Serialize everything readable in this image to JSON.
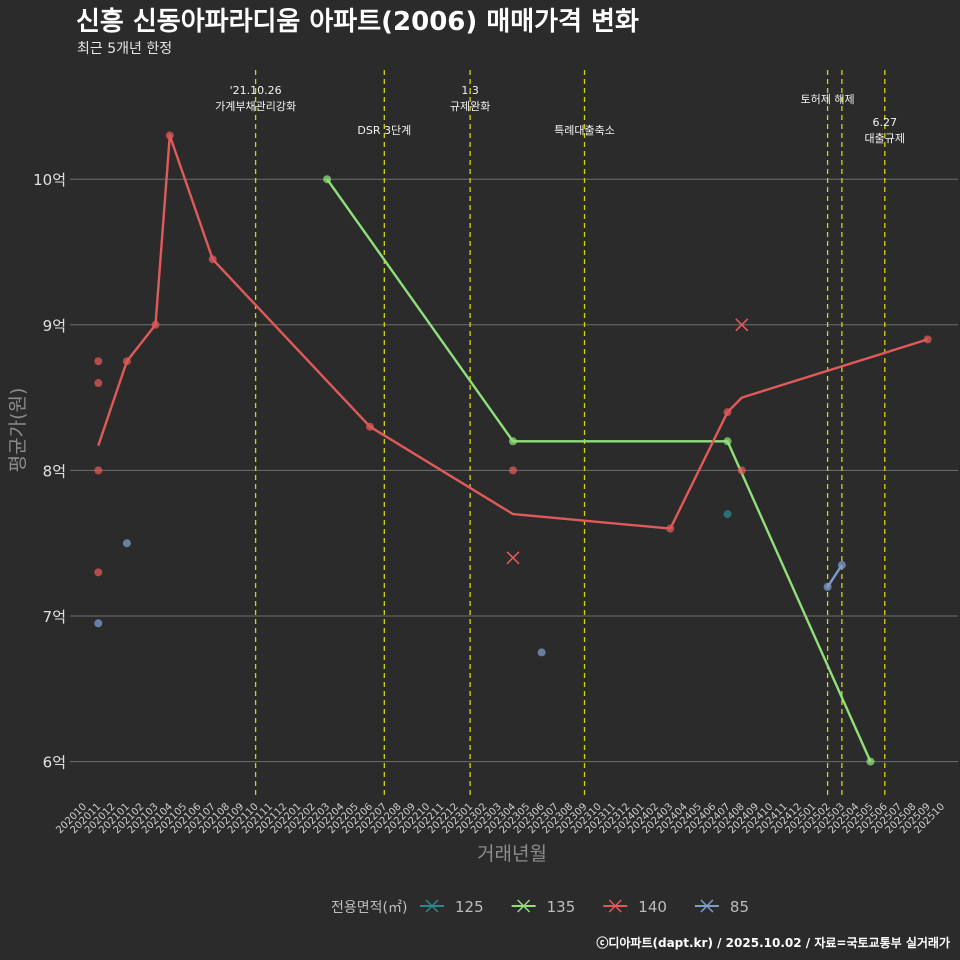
{
  "chart_data": {
    "type": "line",
    "title": "신흥 신동아파라디움 아파트(2006) 매매가격 변화",
    "subtitle": "최근 5개년 한정",
    "xlabel": "거래년월",
    "ylabel": "평균가(원)",
    "ylim": [
      5.75,
      10.75
    ],
    "yticks": [
      {
        "value": 6,
        "label": "6억"
      },
      {
        "value": 7,
        "label": "7억"
      },
      {
        "value": 8,
        "label": "8억"
      },
      {
        "value": 9,
        "label": "9억"
      },
      {
        "value": 10,
        "label": "10억"
      }
    ],
    "x_months": [
      "202010",
      "202011",
      "202012",
      "202101",
      "202102",
      "202103",
      "202104",
      "202105",
      "202106",
      "202107",
      "202108",
      "202109",
      "202110",
      "202111",
      "202112",
      "202201",
      "202202",
      "202203",
      "202204",
      "202205",
      "202206",
      "202207",
      "202208",
      "202209",
      "202210",
      "202211",
      "202212",
      "202301",
      "202302",
      "202303",
      "202304",
      "202305",
      "202306",
      "202307",
      "202308",
      "202309",
      "202310",
      "202311",
      "202312",
      "202401",
      "202402",
      "202403",
      "202404",
      "202405",
      "202406",
      "202407",
      "202408",
      "202409",
      "202410",
      "202411",
      "202412",
      "202501",
      "202502",
      "202503",
      "202504",
      "202505",
      "202506",
      "202507",
      "202508",
      "202509",
      "202510"
    ],
    "events": [
      {
        "month": "202110",
        "lines": [
          "'21.10.26",
          "가계부채관리강화"
        ]
      },
      {
        "month": "202207",
        "lines": [
          "DSR 3단계"
        ]
      },
      {
        "month": "202301",
        "lines": [
          "1.3",
          "규제완화"
        ]
      },
      {
        "month": "202309",
        "lines": [
          "특례대출축소"
        ]
      },
      {
        "month": "202502",
        "lines": [
          "토허제 해제"
        ]
      },
      {
        "month": "202503",
        "lines": []
      },
      {
        "month": "202506",
        "lines": [
          "6.27",
          "대출규제"
        ]
      }
    ],
    "legend": {
      "title": "전용면적(㎡)",
      "position": "bottom"
    },
    "grid": true,
    "series": [
      {
        "name": "125",
        "color": "#2a8a8a",
        "points": [
          {
            "x": "202407",
            "y": 7.7
          }
        ],
        "line": []
      },
      {
        "name": "135",
        "color": "#8fe07a",
        "points": [
          {
            "x": "202203",
            "y": 10.0
          },
          {
            "x": "202304",
            "y": 8.2
          },
          {
            "x": "202407",
            "y": 8.2
          },
          {
            "x": "202505",
            "y": 6.0
          }
        ],
        "line": [
          {
            "x": "202203",
            "y": 10.0
          },
          {
            "x": "202304",
            "y": 8.2
          },
          {
            "x": "202407",
            "y": 8.2
          },
          {
            "x": "202505",
            "y": 6.0
          }
        ]
      },
      {
        "name": "140",
        "color": "#e05a5a",
        "points": [
          {
            "x": "202011",
            "y": 8.75
          },
          {
            "x": "202011",
            "y": 8.6
          },
          {
            "x": "202011",
            "y": 8.0
          },
          {
            "x": "202011",
            "y": 7.3
          },
          {
            "x": "202101",
            "y": 8.75
          },
          {
            "x": "202103",
            "y": 9.0
          },
          {
            "x": "202104",
            "y": 10.3
          },
          {
            "x": "202107",
            "y": 9.45
          },
          {
            "x": "202206",
            "y": 8.3
          },
          {
            "x": "202304",
            "y": 8.0
          },
          {
            "x": "202403",
            "y": 7.6
          },
          {
            "x": "202407",
            "y": 8.4
          },
          {
            "x": "202408",
            "y": 8.0
          },
          {
            "x": "202509",
            "y": 8.9
          }
        ],
        "crosses": [
          {
            "x": "202304",
            "y": 7.4
          },
          {
            "x": "202408",
            "y": 9.0
          }
        ],
        "line": [
          {
            "x": "202011",
            "y": 8.17
          },
          {
            "x": "202101",
            "y": 8.75
          },
          {
            "x": "202103",
            "y": 9.0
          },
          {
            "x": "202104",
            "y": 10.3
          },
          {
            "x": "202107",
            "y": 9.45
          },
          {
            "x": "202206",
            "y": 8.3
          },
          {
            "x": "202304",
            "y": 7.7
          },
          {
            "x": "202403",
            "y": 7.6
          },
          {
            "x": "202407",
            "y": 8.4
          },
          {
            "x": "202408",
            "y": 8.5
          },
          {
            "x": "202509",
            "y": 8.9
          }
        ]
      },
      {
        "name": "85",
        "color": "#7d9ccc",
        "points": [
          {
            "x": "202011",
            "y": 6.95
          },
          {
            "x": "202101",
            "y": 7.5
          },
          {
            "x": "202306",
            "y": 6.75
          },
          {
            "x": "202502",
            "y": 7.2
          },
          {
            "x": "202503",
            "y": 7.35
          }
        ],
        "line": [
          {
            "x": "202502",
            "y": 7.2
          },
          {
            "x": "202503",
            "y": 7.35
          }
        ]
      }
    ]
  },
  "caption": "ⓒ디아파트(dapt.kr) / 2025.10.02 / 자료=국토교통부 실거래가"
}
